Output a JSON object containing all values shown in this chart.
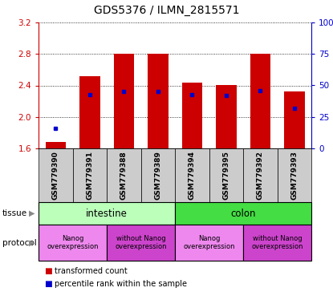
{
  "title": "GDS5376 / ILMN_2815571",
  "samples": [
    "GSM779390",
    "GSM779391",
    "GSM779388",
    "GSM779389",
    "GSM779394",
    "GSM779395",
    "GSM779392",
    "GSM779393"
  ],
  "transformed_counts": [
    1.68,
    2.52,
    2.8,
    2.8,
    2.44,
    2.4,
    2.8,
    2.32
  ],
  "percentile_y_values": [
    1.855,
    2.285,
    2.325,
    2.325,
    2.28,
    2.27,
    2.33,
    2.105
  ],
  "ylim_left": [
    1.6,
    3.2
  ],
  "yticks_left": [
    1.6,
    2.0,
    2.4,
    2.8,
    3.2
  ],
  "yticks_right": [
    0,
    25,
    50,
    75,
    100
  ],
  "bar_color": "#cc0000",
  "percentile_color": "#0000cc",
  "bar_bottom": 1.6,
  "tissue_groups": [
    {
      "label": "intestine",
      "start": 0,
      "end": 4,
      "color": "#bbffbb"
    },
    {
      "label": "colon",
      "start": 4,
      "end": 8,
      "color": "#44dd44"
    }
  ],
  "protocol_groups": [
    {
      "label": "Nanog\noverexpression",
      "start": 0,
      "end": 2,
      "color": "#ee88ee"
    },
    {
      "label": "without Nanog\noverexpression",
      "start": 2,
      "end": 4,
      "color": "#cc44cc"
    },
    {
      "label": "Nanog\noverexpression",
      "start": 4,
      "end": 6,
      "color": "#ee88ee"
    },
    {
      "label": "without Nanog\noverexpression",
      "start": 6,
      "end": 8,
      "color": "#cc44cc"
    }
  ],
  "legend_items": [
    {
      "label": "transformed count",
      "color": "#cc0000"
    },
    {
      "label": "percentile rank within the sample",
      "color": "#0000cc"
    }
  ],
  "left_axis_color": "#cc0000",
  "right_axis_color": "#0000cc",
  "sample_label_fontsize": 6.5,
  "title_fontsize": 10,
  "bar_width": 0.6,
  "sample_box_color": "#cccccc"
}
